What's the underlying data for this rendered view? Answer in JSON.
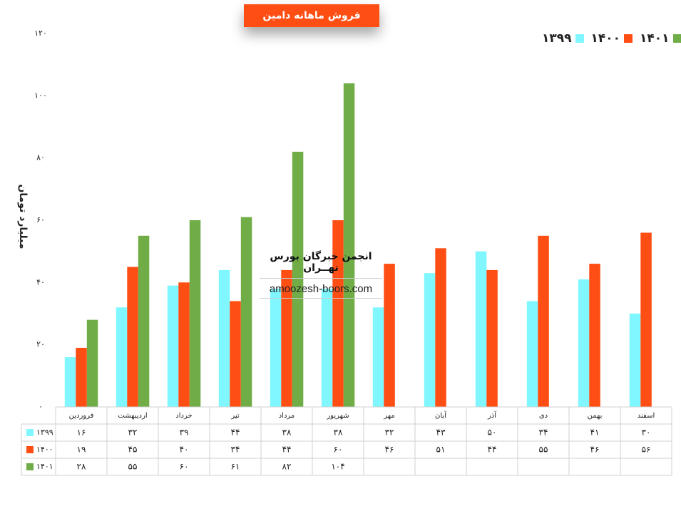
{
  "chart_data": {
    "type": "bar",
    "title": "فروش ماهانه دامین",
    "ylabel": "میلیارد تومان",
    "xlabel": "",
    "ylim": [
      0,
      120
    ],
    "yticks": [
      0,
      20,
      40,
      60,
      80,
      100,
      120
    ],
    "ytick_labels": [
      "۰",
      "۲۰",
      "۴۰",
      "۶۰",
      "۸۰",
      "۱۰۰",
      "۱۲۰"
    ],
    "grid": false,
    "legend_position": "top-right",
    "categories": [
      "فروردین",
      "اردیبهشت",
      "خرداد",
      "تیر",
      "مرداد",
      "شهریور",
      "مهر",
      "آبان",
      "آذر",
      "دی",
      "بهمن",
      "اسفند"
    ],
    "series": [
      {
        "name": "۱۳۹۹",
        "color": "#80f7ff",
        "values": [
          16,
          32,
          39,
          44,
          38,
          38,
          32,
          43,
          50,
          34,
          41,
          30
        ],
        "value_labels": [
          "۱۶",
          "۳۲",
          "۳۹",
          "۴۴",
          "۳۸",
          "۳۸",
          "۳۲",
          "۴۳",
          "۵۰",
          "۳۴",
          "۴۱",
          "۳۰"
        ]
      },
      {
        "name": "۱۴۰۰",
        "color": "#ff4e14",
        "values": [
          19,
          45,
          40,
          34,
          44,
          60,
          46,
          51,
          44,
          55,
          46,
          56
        ],
        "value_labels": [
          "۱۹",
          "۴۵",
          "۴۰",
          "۳۴",
          "۴۴",
          "۶۰",
          "۴۶",
          "۵۱",
          "۴۴",
          "۵۵",
          "۴۶",
          "۵۶"
        ]
      },
      {
        "name": "۱۴۰۱",
        "color": "#70ad47",
        "values": [
          28,
          55,
          60,
          61,
          82,
          104,
          null,
          null,
          null,
          null,
          null,
          null
        ],
        "value_labels": [
          "۲۸",
          "۵۵",
          "۶۰",
          "۶۱",
          "۸۲",
          "۱۰۴",
          "",
          "",
          "",
          "",
          "",
          ""
        ]
      }
    ],
    "legend_labels": [
      "۱۴۰۱",
      "۱۴۰۰",
      "۱۳۹۹"
    ]
  },
  "watermark": {
    "name": "انجمن خبرگان بورس تهــران",
    "url": "amoozesh-boors.com"
  }
}
